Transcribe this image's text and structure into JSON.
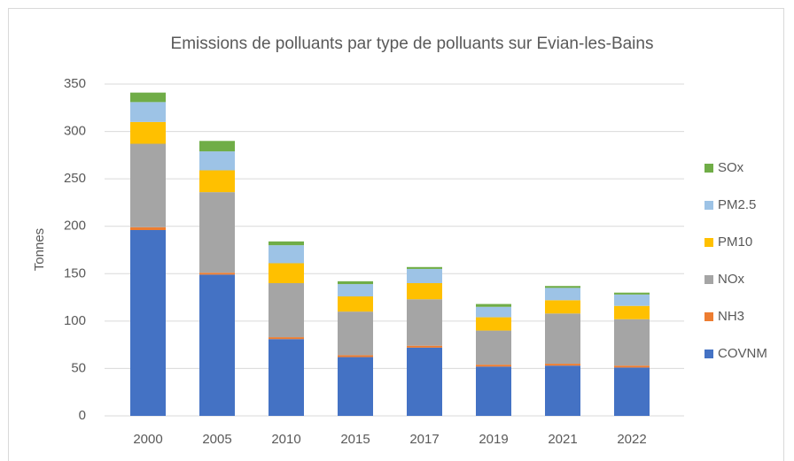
{
  "chart_data": {
    "type": "stacked_bar",
    "title": "Emissions de polluants par type de polluants sur Evian-les-Bains",
    "y_label": "Tonnes",
    "categories": [
      "2000",
      "2005",
      "2010",
      "2015",
      "2017",
      "2019",
      "2021",
      "2022"
    ],
    "series": [
      {
        "name": "COVNM",
        "color": "#4472c4",
        "values": [
          196,
          149,
          81,
          62,
          72,
          52,
          53,
          51
        ]
      },
      {
        "name": "NH3",
        "color": "#ed7d31",
        "values": [
          3,
          2,
          2,
          2,
          2,
          2,
          2,
          2
        ]
      },
      {
        "name": "NOx",
        "color": "#a5a5a5",
        "values": [
          88,
          85,
          57,
          46,
          49,
          36,
          53,
          49
        ]
      },
      {
        "name": "PM10",
        "color": "#ffc000",
        "values": [
          23,
          23,
          21,
          16,
          17,
          14,
          14,
          14
        ]
      },
      {
        "name": "PM2.5",
        "color": "#9dc3e6",
        "values": [
          21,
          20,
          19,
          13,
          15,
          11,
          13,
          12
        ]
      },
      {
        "name": "SOx",
        "color": "#70ad47",
        "values": [
          10,
          11,
          4,
          3,
          2,
          3,
          2,
          2
        ]
      }
    ],
    "ylim": [
      0,
      350
    ],
    "yticks": [
      0,
      50,
      100,
      150,
      200,
      250,
      300,
      350
    ],
    "grid": true,
    "legend": "right"
  }
}
